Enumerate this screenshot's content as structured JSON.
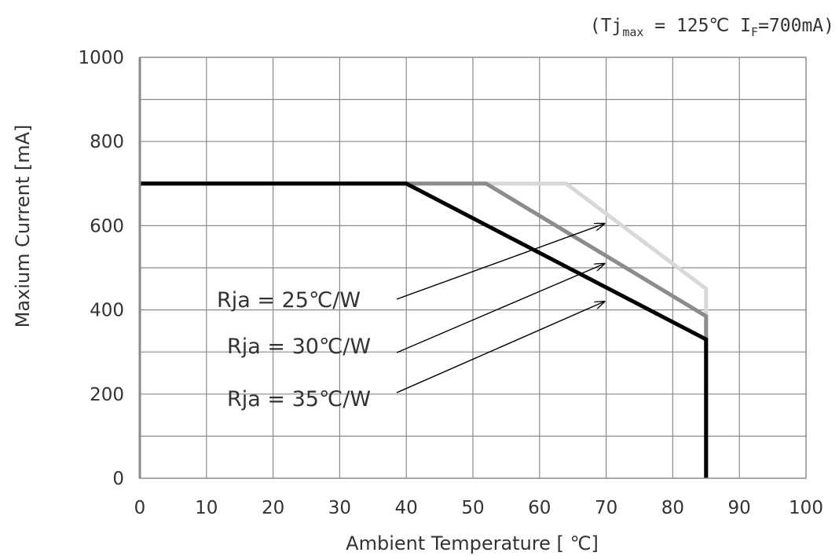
{
  "chart_data": {
    "type": "line",
    "note": {
      "prefix": "(Tj",
      "subscript_max": "max",
      "middle": " = 125℃ I",
      "subscript_f": "F",
      "suffix": "=700mA)"
    },
    "xlabel": "Ambient Temperature [ ℃]",
    "ylabel": "Maxium Current [mA]",
    "xlim": [
      0,
      100
    ],
    "ylim": [
      0,
      1000
    ],
    "xticks": [
      "0",
      "10",
      "20",
      "30",
      "40",
      "50",
      "60",
      "70",
      "80",
      "90",
      "100"
    ],
    "yticks": [
      "0",
      "200",
      "400",
      "600",
      "800",
      "1000"
    ],
    "grid": true,
    "series": [
      {
        "name": "Rja = 25℃/W",
        "color": "#d8d8d8",
        "x": [
          0,
          64,
          85,
          85
        ],
        "y": [
          700,
          700,
          450,
          0
        ]
      },
      {
        "name": "Rja = 30℃/W",
        "color": "#8c8c8c",
        "x": [
          0,
          52,
          85,
          85
        ],
        "y": [
          700,
          700,
          385,
          0
        ]
      },
      {
        "name": "Rja = 35℃/W",
        "color": "#000000",
        "x": [
          0,
          40,
          85,
          85
        ],
        "y": [
          700,
          700,
          330,
          0
        ]
      }
    ],
    "annotations": [
      {
        "text": "Rja = 25℃/W",
        "arrow_to": [
          70,
          605
        ]
      },
      {
        "text": "Rja = 30℃/W",
        "arrow_to": [
          70,
          510
        ]
      },
      {
        "text": "Rja = 35℃/W",
        "arrow_to": [
          70,
          420
        ]
      }
    ]
  }
}
